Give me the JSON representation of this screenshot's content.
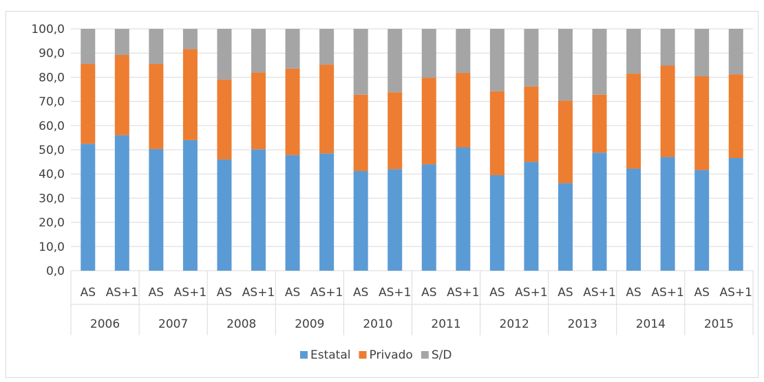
{
  "chart_data": {
    "type": "bar",
    "stacked": true,
    "title": "",
    "xlabel": "",
    "ylabel": "",
    "ylim": [
      0,
      100
    ],
    "y_ticks": [
      "0,0",
      "10,0",
      "20,0",
      "30,0",
      "40,0",
      "50,0",
      "60,0",
      "70,0",
      "80,0",
      "90,0",
      "100,0"
    ],
    "groups": [
      "2006",
      "2007",
      "2008",
      "2009",
      "2010",
      "2011",
      "2012",
      "2013",
      "2014",
      "2015"
    ],
    "subcategories": [
      "AS",
      "AS+1"
    ],
    "categories": [
      "2006 AS",
      "2006 AS+1",
      "2007 AS",
      "2007 AS+1",
      "2008 AS",
      "2008 AS+1",
      "2009 AS",
      "2009 AS+1",
      "2010 AS",
      "2010 AS+1",
      "2011 AS",
      "2011 AS+1",
      "2012 AS",
      "2012 AS+1",
      "2013 AS",
      "2013 AS+1",
      "2014 AS",
      "2014 AS+1",
      "2015 AS",
      "2015 AS+1"
    ],
    "series": [
      {
        "name": "Estatal",
        "color": "#5b9bd5",
        "values": [
          52.5,
          56.0,
          50.3,
          54.0,
          46.0,
          50.2,
          47.8,
          48.5,
          41.2,
          42.0,
          44.0,
          51.0,
          39.5,
          45.0,
          36.2,
          48.8,
          42.2,
          47.0,
          41.6,
          46.6
        ]
      },
      {
        "name": "Privado",
        "color": "#ed7d31",
        "values": [
          33.0,
          33.2,
          35.2,
          37.6,
          33.0,
          31.8,
          35.8,
          36.7,
          31.6,
          31.8,
          35.8,
          30.8,
          34.7,
          31.2,
          34.1,
          24.0,
          39.3,
          37.8,
          38.8,
          34.6
        ]
      },
      {
        "name": "S/D",
        "color": "#a5a5a5",
        "values": [
          14.5,
          10.8,
          14.5,
          8.4,
          21.0,
          18.0,
          16.4,
          14.8,
          27.2,
          26.2,
          20.2,
          18.2,
          25.8,
          23.8,
          29.7,
          27.2,
          18.5,
          15.2,
          19.6,
          18.8
        ]
      }
    ],
    "grid": true,
    "legend_position": "bottom"
  }
}
